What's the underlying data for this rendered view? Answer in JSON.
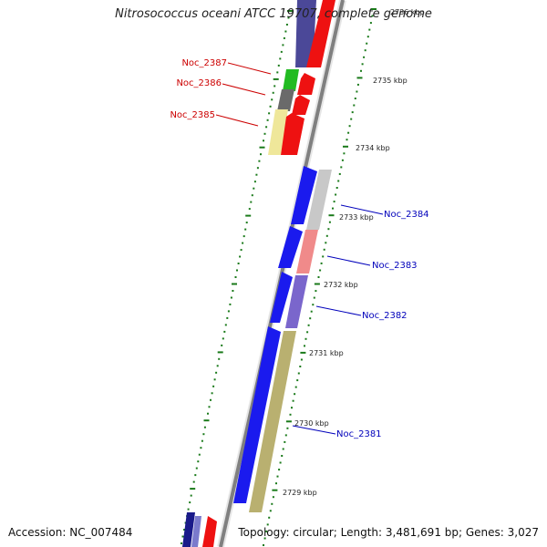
{
  "title": "Nitrosococcus oceani ATCC 19707, complete genome",
  "footer": {
    "accession": "Accession: NC_007484",
    "summary": "Topology: circular; Length: 3,481,691 bp; Genes: 3,027"
  },
  "colors": {
    "backbone": "#808080",
    "tick": "#1a7a1a",
    "reverse_label": "#cc0000",
    "forward_label": "#0000bb"
  },
  "scale": {
    "unit": "kbp",
    "ticks": [
      "2729 kbp",
      "2730 kbp",
      "2731 kbp",
      "2732 kbp",
      "2733 kbp",
      "2734 kbp",
      "2735 kbp",
      "2736 kbp"
    ]
  },
  "genes": {
    "reverse": [
      {
        "name": "Noc_2387",
        "color": "#22bb22"
      },
      {
        "name": "Noc_2386",
        "color": "#6a6a6a"
      },
      {
        "name": "Noc_2385",
        "color": "#efe79a"
      }
    ],
    "forward": [
      {
        "name": "Noc_2384",
        "color": "#c8c8c8"
      },
      {
        "name": "Noc_2383",
        "color": "#f08a8a"
      },
      {
        "name": "Noc_2382",
        "color": "#7a66cc"
      },
      {
        "name": "Noc_2381",
        "color": "#b9b070"
      }
    ]
  }
}
